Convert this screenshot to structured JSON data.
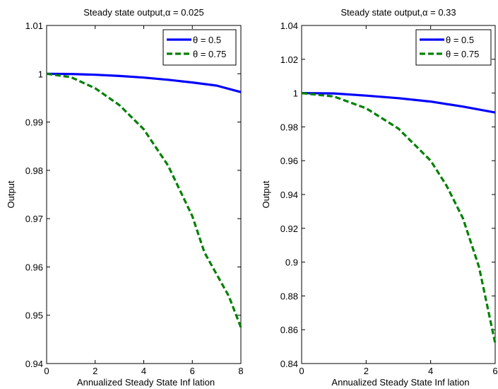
{
  "chart_data": [
    {
      "type": "line",
      "title": "Steady  state output,α = 0.025",
      "xlabel": "Annualized Steady  State Inf lation",
      "ylabel": "Output",
      "xlim": [
        0,
        8
      ],
      "ylim": [
        0.94,
        1.01
      ],
      "xticks": [
        0,
        2,
        4,
        6,
        8
      ],
      "xtick_labels": [
        "0",
        "2",
        "4",
        "6",
        "8"
      ],
      "yticks": [
        0.94,
        0.95,
        0.96,
        0.97,
        0.98,
        0.99,
        1.0,
        1.01
      ],
      "ytick_labels": [
        "0.94",
        "0.95",
        "0.96",
        "0.97",
        "0.98",
        "0.99",
        "1",
        "1.01"
      ],
      "grid": false,
      "legend_position": "top-right",
      "series": [
        {
          "name": "θ = 0.5",
          "color": "#0000ff",
          "style": "solid",
          "x": [
            0,
            1,
            2,
            3,
            4,
            5,
            6,
            7,
            8
          ],
          "y": [
            1.0,
            0.99995,
            0.9998,
            0.99955,
            0.9992,
            0.99875,
            0.9982,
            0.99755,
            0.9962
          ]
        },
        {
          "name": "θ = 0.75",
          "color": "#008000",
          "style": "dashed",
          "x": [
            0,
            1,
            2,
            3,
            4,
            5,
            6,
            6.5,
            7,
            7.5,
            8
          ],
          "y": [
            1.0,
            0.9993,
            0.997,
            0.9935,
            0.9885,
            0.981,
            0.9705,
            0.963,
            0.9585,
            0.954,
            0.9475
          ]
        }
      ]
    },
    {
      "type": "line",
      "title": "Steady  state output,α = 0.33",
      "xlabel": "Annualized Steady  State Inf lation",
      "ylabel": "Output",
      "xlim": [
        0,
        6
      ],
      "ylim": [
        0.84,
        1.04
      ],
      "xticks": [
        0,
        2,
        4,
        6
      ],
      "xtick_labels": [
        "0",
        "2",
        "4",
        "6"
      ],
      "yticks": [
        0.84,
        0.86,
        0.88,
        0.9,
        0.92,
        0.94,
        0.96,
        0.98,
        1.0,
        1.02,
        1.04
      ],
      "ytick_labels": [
        "0.84",
        "0.86",
        "0.88",
        "0.9",
        "0.92",
        "0.94",
        "0.96",
        "0.98",
        "1",
        "1.02",
        "1.04"
      ],
      "grid": false,
      "legend_position": "top-right",
      "series": [
        {
          "name": "θ = 0.5",
          "color": "#0000ff",
          "style": "solid",
          "x": [
            0,
            1,
            2,
            3,
            4,
            5,
            6
          ],
          "y": [
            1.0,
            0.9998,
            0.9985,
            0.997,
            0.995,
            0.992,
            0.9885
          ]
        },
        {
          "name": "θ = 0.75",
          "color": "#008000",
          "style": "dashed",
          "x": [
            0,
            1,
            2,
            3,
            4,
            4.5,
            5,
            5.5,
            6
          ],
          "y": [
            1.0,
            0.998,
            0.991,
            0.979,
            0.96,
            0.945,
            0.926,
            0.897,
            0.852
          ]
        }
      ]
    }
  ]
}
